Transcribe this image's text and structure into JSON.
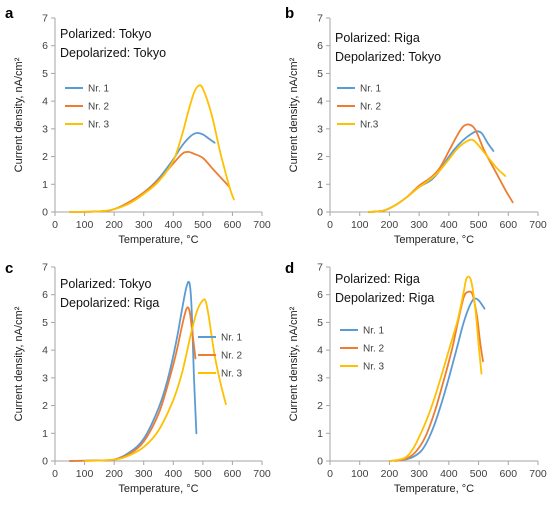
{
  "figure": {
    "background": "#ffffff",
    "axis_color": "#a6a6a6"
  },
  "series_colors": {
    "Nr. 1": "#5b9bd5",
    "Nr. 2": "#ed7d31",
    "Nr. 3": "#ffc000"
  },
  "chart_data": [
    {
      "type": "line",
      "panel": "a",
      "annotation": [
        "Polarized: Tokyo",
        "Depolarized: Tokyo"
      ],
      "xlabel": "Temperature, °C",
      "ylabel": "Current density, nA/cm²",
      "xlim": [
        0,
        700
      ],
      "ylim": [
        0,
        7
      ],
      "xticks": [
        0,
        100,
        200,
        300,
        400,
        500,
        600,
        700
      ],
      "yticks": [
        0,
        1,
        2,
        3,
        4,
        5,
        6,
        7
      ],
      "grid": false,
      "legend_position": "left",
      "series": [
        {
          "name": "Nr. 1",
          "color": "#5b9bd5",
          "x": [
            50,
            150,
            200,
            250,
            300,
            350,
            400,
            430,
            460,
            480,
            500,
            520,
            540
          ],
          "y": [
            0,
            0.02,
            0.1,
            0.35,
            0.7,
            1.2,
            1.9,
            2.4,
            2.75,
            2.85,
            2.8,
            2.65,
            2.5
          ]
        },
        {
          "name": "Nr. 2",
          "color": "#ed7d31",
          "x": [
            50,
            150,
            200,
            250,
            300,
            350,
            400,
            430,
            450,
            470,
            500,
            530,
            560,
            590
          ],
          "y": [
            0,
            0.02,
            0.1,
            0.35,
            0.7,
            1.15,
            1.75,
            2.1,
            2.17,
            2.1,
            1.95,
            1.6,
            1.25,
            0.9
          ]
        },
        {
          "name": "Nr. 3",
          "color": "#ffc000",
          "x": [
            50,
            150,
            200,
            250,
            300,
            350,
            400,
            430,
            450,
            470,
            485,
            500,
            530,
            560,
            590,
            605
          ],
          "y": [
            0,
            0.02,
            0.1,
            0.3,
            0.65,
            1.1,
            1.85,
            2.8,
            3.6,
            4.3,
            4.55,
            4.45,
            3.5,
            2.1,
            0.9,
            0.45
          ]
        }
      ]
    },
    {
      "type": "line",
      "panel": "b",
      "annotation": [
        "Polarized: Riga",
        "Depolarized: Tokyo"
      ],
      "xlabel": "Temperature, °C",
      "ylabel": "Current density, nA/cm²",
      "xlim": [
        0,
        700
      ],
      "ylim": [
        0,
        7
      ],
      "xticks": [
        0,
        100,
        200,
        300,
        400,
        500,
        600,
        700
      ],
      "yticks": [
        0,
        1,
        2,
        3,
        4,
        5,
        6,
        7
      ],
      "grid": false,
      "legend_position": "left",
      "series": [
        {
          "name": "Nr. 1",
          "color": "#5b9bd5",
          "x": [
            130,
            180,
            220,
            260,
            300,
            340,
            370,
            400,
            430,
            460,
            490,
            510,
            530,
            550
          ],
          "y": [
            0,
            0.05,
            0.25,
            0.55,
            0.9,
            1.15,
            1.5,
            2.0,
            2.4,
            2.7,
            2.9,
            2.85,
            2.5,
            2.2
          ]
        },
        {
          "name": "Nr. 2",
          "color": "#ed7d31",
          "x": [
            130,
            180,
            220,
            260,
            300,
            340,
            370,
            400,
            430,
            450,
            470,
            490,
            520,
            560,
            590,
            615
          ],
          "y": [
            0,
            0.05,
            0.25,
            0.55,
            0.95,
            1.25,
            1.6,
            2.2,
            2.8,
            3.1,
            3.15,
            2.95,
            2.2,
            1.4,
            0.8,
            0.35
          ]
        },
        {
          "name": "Nr.3",
          "color": "#ffc000",
          "x": [
            130,
            180,
            220,
            260,
            300,
            340,
            370,
            400,
            430,
            460,
            480,
            500,
            530,
            560,
            590
          ],
          "y": [
            0,
            0.05,
            0.25,
            0.55,
            0.9,
            1.2,
            1.5,
            1.9,
            2.3,
            2.55,
            2.6,
            2.4,
            2.0,
            1.6,
            1.3
          ]
        }
      ]
    },
    {
      "type": "line",
      "panel": "c",
      "annotation": [
        "Polarized: Tokyo",
        "Depolarized: Riga"
      ],
      "xlabel": "Temperature, °C",
      "ylabel": "Current density, nA/cm²",
      "xlim": [
        0,
        700
      ],
      "ylim": [
        0,
        7
      ],
      "xticks": [
        0,
        100,
        200,
        300,
        400,
        500,
        600,
        700
      ],
      "yticks": [
        0,
        1,
        2,
        3,
        4,
        5,
        6,
        7
      ],
      "grid": false,
      "legend_position": "right",
      "series": [
        {
          "name": "Nr. 1",
          "color": "#5b9bd5",
          "x": [
            50,
            150,
            200,
            250,
            300,
            350,
            380,
            410,
            430,
            445,
            455,
            462,
            470,
            478
          ],
          "y": [
            0,
            0.02,
            0.05,
            0.3,
            0.8,
            1.9,
            2.9,
            4.3,
            5.5,
            6.3,
            6.4,
            5.5,
            3.0,
            1.0
          ]
        },
        {
          "name": "Nr. 2",
          "color": "#ed7d31",
          "x": [
            50,
            150,
            200,
            250,
            300,
            350,
            380,
            410,
            430,
            445,
            455,
            465,
            475
          ],
          "y": [
            0,
            0.02,
            0.05,
            0.25,
            0.7,
            1.7,
            2.7,
            3.9,
            4.9,
            5.5,
            5.4,
            4.6,
            3.7
          ]
        },
        {
          "name": "Nr. 3",
          "color": "#ffc000",
          "x": [
            100,
            200,
            250,
            300,
            350,
            400,
            430,
            460,
            480,
            500,
            510,
            520,
            540,
            560,
            578
          ],
          "y": [
            0,
            0.05,
            0.2,
            0.5,
            1.1,
            2.2,
            3.2,
            4.6,
            5.4,
            5.8,
            5.75,
            5.2,
            3.8,
            2.8,
            2.05
          ]
        }
      ]
    },
    {
      "type": "line",
      "panel": "d",
      "annotation": [
        "Polarized: Riga",
        "Depolarized: Riga"
      ],
      "xlabel": "Temperature, °C",
      "ylabel": "Current density, nA/cm²",
      "xlim": [
        0,
        700
      ],
      "ylim": [
        0,
        7
      ],
      "xticks": [
        0,
        100,
        200,
        300,
        400,
        500,
        600,
        700
      ],
      "yticks": [
        0,
        1,
        2,
        3,
        4,
        5,
        6,
        7
      ],
      "grid": false,
      "legend_position": "left",
      "series": [
        {
          "name": "Nr. 1",
          "color": "#5b9bd5",
          "x": [
            200,
            250,
            280,
            310,
            340,
            370,
            400,
            430,
            450,
            470,
            485,
            500,
            520
          ],
          "y": [
            0,
            0.05,
            0.15,
            0.4,
            1.0,
            1.9,
            3.0,
            4.2,
            5.0,
            5.6,
            5.85,
            5.8,
            5.5
          ]
        },
        {
          "name": "Nr. 2",
          "color": "#ed7d31",
          "x": [
            220,
            260,
            290,
            320,
            350,
            380,
            410,
            430,
            450,
            465,
            480,
            495,
            505,
            515
          ],
          "y": [
            0,
            0.1,
            0.35,
            0.85,
            1.7,
            2.8,
            4.0,
            5.0,
            5.9,
            6.1,
            6.0,
            5.2,
            4.3,
            3.6
          ]
        },
        {
          "name": "Nr. 3",
          "color": "#ffc000",
          "x": [
            200,
            250,
            280,
            310,
            340,
            370,
            400,
            430,
            450,
            460,
            475,
            490,
            500,
            510
          ],
          "y": [
            0,
            0.1,
            0.45,
            1.1,
            1.9,
            2.9,
            4.0,
            5.1,
            6.1,
            6.6,
            6.5,
            5.4,
            4.2,
            3.15
          ]
        }
      ]
    }
  ]
}
